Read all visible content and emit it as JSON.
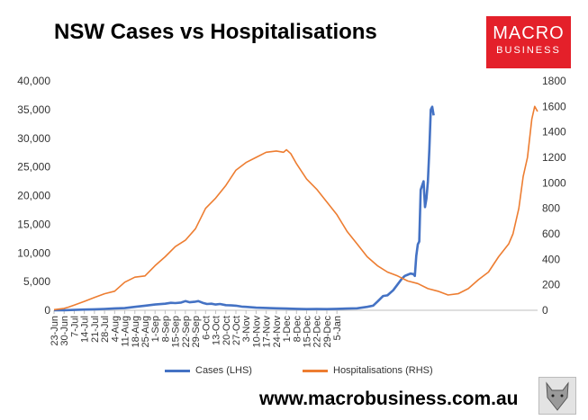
{
  "title": "NSW Cases vs Hospitalisations",
  "logo": {
    "line1": "MACRO",
    "line2": "BUSINESS",
    "color": "#e4202a"
  },
  "url": "www.macrobusiness.com.au",
  "chart_data": {
    "type": "line",
    "title": "NSW Cases vs Hospitalisations",
    "categories": [
      "23-Jun",
      "30-Jun",
      "7-Jul",
      "14-Jul",
      "21-Jul",
      "28-Jul",
      "4-Aug",
      "11-Aug",
      "18-Aug",
      "25-Aug",
      "1-Sep",
      "8-Sep",
      "15-Sep",
      "22-Sep",
      "29-Sep",
      "6-Oct",
      "13-Oct",
      "20-Oct",
      "27-Oct",
      "3-Nov",
      "10-Nov",
      "17-Nov",
      "24-Nov",
      "1-Dec",
      "8-Dec",
      "15-Dec",
      "22-Dec",
      "29-Dec",
      "5-Jan"
    ],
    "y_left": {
      "min": 0,
      "max": 40000,
      "step": 5000,
      "ticks": [
        "0",
        "5,000",
        "10,000",
        "15,000",
        "20,000",
        "25,000",
        "30,000",
        "35,000",
        "40,000"
      ]
    },
    "y_right": {
      "min": 0,
      "max": 1800,
      "step": 200,
      "ticks": [
        "0",
        "200",
        "400",
        "600",
        "800",
        "1000",
        "1200",
        "1400",
        "1600",
        "1800"
      ]
    },
    "series": [
      {
        "name": "Cases (LHS)",
        "axis": "left",
        "color": "#4472c4",
        "points": [
          [
            0,
            10
          ],
          [
            7,
            20
          ],
          [
            14,
            60
          ],
          [
            21,
            120
          ],
          [
            28,
            170
          ],
          [
            35,
            230
          ],
          [
            42,
            330
          ],
          [
            49,
            380
          ],
          [
            56,
            600
          ],
          [
            63,
            800
          ],
          [
            70,
            1000
          ],
          [
            77,
            1150
          ],
          [
            81,
            1300
          ],
          [
            84,
            1250
          ],
          [
            88,
            1350
          ],
          [
            91,
            1600
          ],
          [
            94,
            1400
          ],
          [
            98,
            1500
          ],
          [
            100,
            1600
          ],
          [
            103,
            1300
          ],
          [
            106,
            1100
          ],
          [
            109,
            1150
          ],
          [
            112,
            1000
          ],
          [
            115,
            1100
          ],
          [
            119,
            900
          ],
          [
            123,
            850
          ],
          [
            126,
            800
          ],
          [
            130,
            650
          ],
          [
            133,
            600
          ],
          [
            140,
            450
          ],
          [
            147,
            400
          ],
          [
            154,
            350
          ],
          [
            161,
            300
          ],
          [
            168,
            250
          ],
          [
            175,
            200
          ],
          [
            182,
            220
          ],
          [
            189,
            200
          ],
          [
            196,
            250
          ],
          [
            203,
            300
          ],
          [
            210,
            350
          ],
          [
            217,
            600
          ],
          [
            221,
            800
          ],
          [
            224,
            1500
          ],
          [
            228,
            2500
          ],
          [
            231,
            2600
          ],
          [
            235,
            3500
          ],
          [
            238,
            4500
          ],
          [
            241,
            5500
          ],
          [
            243,
            6000
          ],
          [
            245,
            6200
          ],
          [
            247,
            6400
          ],
          [
            249,
            6300
          ],
          [
            250,
            6000
          ],
          [
            251,
            9500
          ],
          [
            252,
            11500
          ],
          [
            253,
            12000
          ],
          [
            254,
            21000
          ],
          [
            256,
            22500
          ],
          [
            257,
            18000
          ],
          [
            258,
            19500
          ],
          [
            259,
            22500
          ],
          [
            260,
            28000
          ],
          [
            261,
            35000
          ],
          [
            262,
            35500
          ],
          [
            263,
            34000
          ]
        ]
      },
      {
        "name": "Hospitalisations (RHS)",
        "axis": "right",
        "color": "#ed7d31",
        "points": [
          [
            0,
            5
          ],
          [
            7,
            15
          ],
          [
            10,
            25
          ],
          [
            14,
            40
          ],
          [
            21,
            70
          ],
          [
            28,
            100
          ],
          [
            35,
            130
          ],
          [
            42,
            150
          ],
          [
            49,
            220
          ],
          [
            56,
            260
          ],
          [
            63,
            270
          ],
          [
            70,
            350
          ],
          [
            77,
            420
          ],
          [
            84,
            500
          ],
          [
            91,
            550
          ],
          [
            98,
            640
          ],
          [
            105,
            800
          ],
          [
            112,
            880
          ],
          [
            119,
            980
          ],
          [
            126,
            1100
          ],
          [
            133,
            1160
          ],
          [
            140,
            1200
          ],
          [
            147,
            1240
          ],
          [
            154,
            1250
          ],
          [
            159,
            1240
          ],
          [
            161,
            1260
          ],
          [
            164,
            1230
          ],
          [
            168,
            1150
          ],
          [
            175,
            1030
          ],
          [
            182,
            950
          ],
          [
            189,
            850
          ],
          [
            196,
            750
          ],
          [
            203,
            620
          ],
          [
            210,
            520
          ],
          [
            217,
            420
          ],
          [
            224,
            350
          ],
          [
            231,
            300
          ],
          [
            238,
            270
          ],
          [
            245,
            230
          ],
          [
            252,
            210
          ],
          [
            259,
            170
          ],
          [
            266,
            150
          ],
          [
            273,
            120
          ],
          [
            280,
            130
          ],
          [
            287,
            170
          ],
          [
            294,
            240
          ],
          [
            301,
            300
          ],
          [
            308,
            420
          ],
          [
            315,
            520
          ],
          [
            318,
            600
          ],
          [
            322,
            800
          ],
          [
            325,
            1050
          ],
          [
            328,
            1200
          ],
          [
            331,
            1500
          ],
          [
            333,
            1600
          ],
          [
            335,
            1560
          ]
        ]
      }
    ],
    "x_max_day": 335
  }
}
